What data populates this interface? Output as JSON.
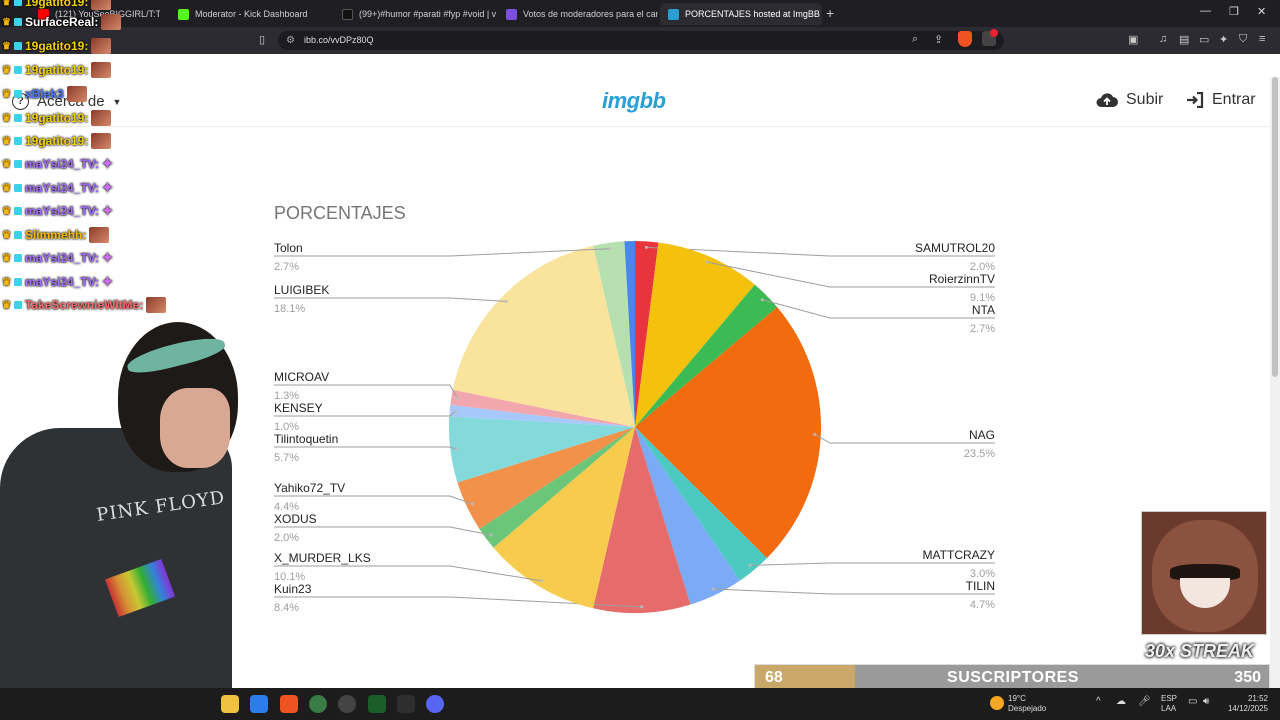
{
  "browser": {
    "tabs": [
      {
        "label": "(121) YouSeeBIGGIRL/T:T - YouTu",
        "fav_color": "#ff0000",
        "active": false
      },
      {
        "label": "Moderator - Kick Dashboard",
        "fav_color": "#53fc18",
        "active": false
      },
      {
        "label": "(99+)#humor #parati #fyp #void | vo",
        "fav_color": "#111111",
        "active": false
      },
      {
        "label": "Votos de moderadores para el canal",
        "fav_color": "#7b4fe0",
        "active": false
      },
      {
        "label": "PORCENTAJES hosted at ImgBB",
        "fav_color": "#2a9fd6",
        "active": true
      }
    ],
    "url": "ibb.co/vvDPz80Q"
  },
  "site": {
    "logo": "imgbb",
    "about_label": "Acerca de",
    "upload_label": "Subir",
    "login_label": "Entrar"
  },
  "chart_data": {
    "type": "pie",
    "title": "PORCENTAJES",
    "unit": "%",
    "slices": [
      {
        "name": "SAMUTROL20",
        "pct_label": "2.0%",
        "value": 2.0,
        "color": "#e8343c"
      },
      {
        "name": "RoierzinnTV",
        "pct_label": "9.1%",
        "value": 9.1,
        "color": "#f4c20d"
      },
      {
        "name": "NTA",
        "pct_label": "2.7%",
        "value": 2.7,
        "color": "#3cba54"
      },
      {
        "name": "NAG",
        "pct_label": "23.5%",
        "value": 23.5,
        "color": "#f26b0f"
      },
      {
        "name": "MATTCRAZY",
        "pct_label": "3.0%",
        "value": 3.0,
        "color": "#4cc9c0"
      },
      {
        "name": "TILIN",
        "pct_label": "4.7%",
        "value": 4.7,
        "color": "#7baaf7"
      },
      {
        "name": "Kuin23",
        "pct_label": "8.4%",
        "value": 8.4,
        "color": "#e66b6b"
      },
      {
        "name": "X_MURDER_LKS",
        "pct_label": "10.1%",
        "value": 10.1,
        "color": "#f7cb4d"
      },
      {
        "name": "XODUS",
        "pct_label": "2.0%",
        "value": 2.0,
        "color": "#6cc67a"
      },
      {
        "name": "Yahiko72_TV",
        "pct_label": "4.4%",
        "value": 4.4,
        "color": "#f2914a"
      },
      {
        "name": "Tilintoquetin",
        "pct_label": "5.7%",
        "value": 5.7,
        "color": "#84dadb"
      },
      {
        "name": "KENSEY",
        "pct_label": "1.0%",
        "value": 1.0,
        "color": "#a6c8fa"
      },
      {
        "name": "MICROAV",
        "pct_label": "1.3%",
        "value": 1.3,
        "color": "#f2a6ae"
      },
      {
        "name": "LUIGIBEK",
        "pct_label": "18.1%",
        "value": 18.1,
        "color": "#fae39c"
      },
      {
        "name": "Tolon",
        "pct_label": "2.7%",
        "value": 2.7,
        "color": "#b7e0b0"
      },
      {
        "name": "",
        "pct_label": "",
        "value": 0.9,
        "color": "#4a86e8"
      }
    ]
  },
  "stream": {
    "chat": [
      {
        "user": "19gatito19:",
        "color": "#f5d000"
      },
      {
        "user": "SurfaceReal:",
        "color": "#ffffff"
      },
      {
        "user": "19gatito19:",
        "color": "#f5d000"
      },
      {
        "user": "19gatito19:",
        "color": "#f5d000"
      },
      {
        "user": "xBlek3",
        "color": "#4d7bff"
      },
      {
        "user": "19gatito19:",
        "color": "#f5d000"
      },
      {
        "user": "19gatito19:",
        "color": "#f5d000"
      },
      {
        "user": "maYsi24_TV:",
        "color": "#a46bff"
      },
      {
        "user": "maYsi24_TV:",
        "color": "#a46bff"
      },
      {
        "user": "maYsi24_TV:",
        "color": "#a46bff"
      },
      {
        "user": "Slimmehh:",
        "color": "#f5b800"
      },
      {
        "user": "maYsi24_TV:",
        "color": "#a46bff"
      },
      {
        "user": "maYsi24_TV:",
        "color": "#a46bff"
      },
      {
        "user": "TakeScrewnieWitMe:",
        "color": "#ff6b6b"
      }
    ],
    "shirt_text": "PINK FLOYD",
    "streak": "30x STREAK",
    "sub_goal": {
      "current": "68",
      "label": "SUSCRIPTORES",
      "goal": "350",
      "progress": 0.194
    }
  },
  "taskbar": {
    "weather_temp": "19°C",
    "weather_desc": "Despejado",
    "lang_top": "ESP",
    "lang_bottom": "LAA",
    "time": "21:52",
    "date": "14/12/2025"
  }
}
